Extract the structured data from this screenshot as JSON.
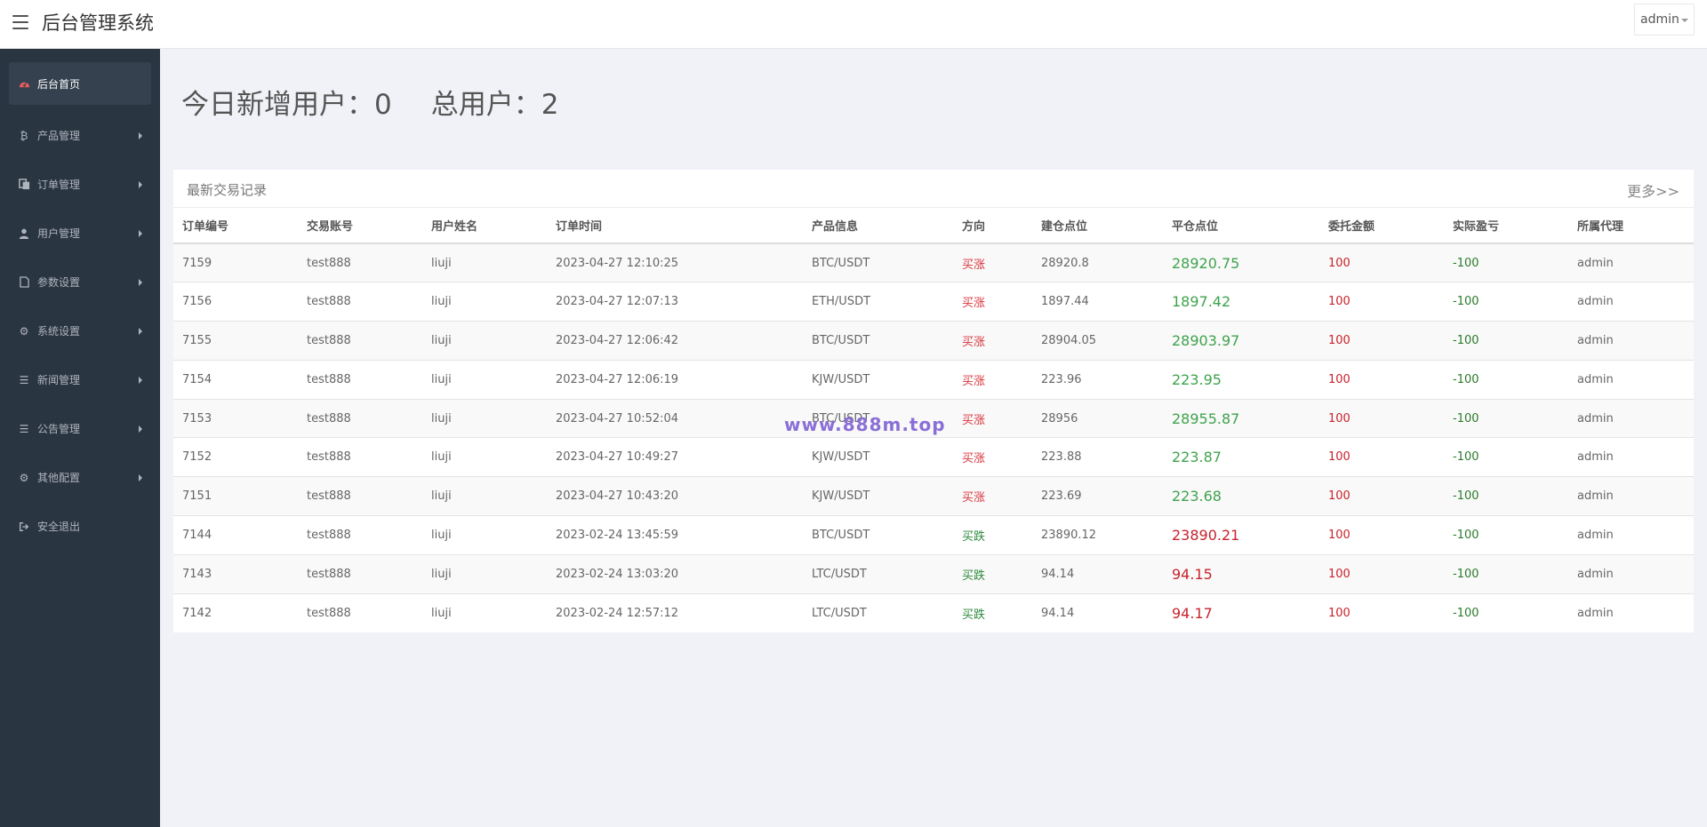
{
  "header": {
    "title": "后台管理系统",
    "user_menu": "admin"
  },
  "sidebar": {
    "items": [
      {
        "label": "后台首页",
        "icon": "dashboard-icon",
        "active": true
      },
      {
        "label": "产品管理",
        "icon": "bitcoin-icon"
      },
      {
        "label": "订单管理",
        "icon": "copy-icon"
      },
      {
        "label": "用户管理",
        "icon": "user-icon"
      },
      {
        "label": "参数设置",
        "icon": "file-icon"
      },
      {
        "label": "系统设置",
        "icon": "gears-icon"
      },
      {
        "label": "新闻管理",
        "icon": "list-icon"
      },
      {
        "label": "公告管理",
        "icon": "list-icon"
      },
      {
        "label": "其他配置",
        "icon": "gear-icon"
      },
      {
        "label": "安全退出",
        "icon": "sign-out-icon"
      }
    ]
  },
  "stats": {
    "new_users_label": "今日新增用户：0",
    "total_users_label": "总用户：2"
  },
  "panel": {
    "title": "最新交易记录",
    "more": "更多>>"
  },
  "table": {
    "columns": [
      "订单编号",
      "交易账号",
      "用户姓名",
      "订单时间",
      "产品信息",
      "方向",
      "建仓点位",
      "平仓点位",
      "委托金额",
      "实际盈亏",
      "所属代理"
    ],
    "rows": [
      [
        "7159",
        "test888",
        "liuji",
        "2023-04-27 12:10:25",
        "BTC/USDT",
        "买涨",
        "28920.8",
        "28920.75",
        "100",
        "-100",
        "admin"
      ],
      [
        "7156",
        "test888",
        "liuji",
        "2023-04-27 12:07:13",
        "ETH/USDT",
        "买涨",
        "1897.44",
        "1897.42",
        "100",
        "-100",
        "admin"
      ],
      [
        "7155",
        "test888",
        "liuji",
        "2023-04-27 12:06:42",
        "BTC/USDT",
        "买涨",
        "28904.05",
        "28903.97",
        "100",
        "-100",
        "admin"
      ],
      [
        "7154",
        "test888",
        "liuji",
        "2023-04-27 12:06:19",
        "KJW/USDT",
        "买涨",
        "223.96",
        "223.95",
        "100",
        "-100",
        "admin"
      ],
      [
        "7153",
        "test888",
        "liuji",
        "2023-04-27 10:52:04",
        "BTC/USDT",
        "买涨",
        "28956",
        "28955.87",
        "100",
        "-100",
        "admin"
      ],
      [
        "7152",
        "test888",
        "liuji",
        "2023-04-27 10:49:27",
        "KJW/USDT",
        "买涨",
        "223.88",
        "223.87",
        "100",
        "-100",
        "admin"
      ],
      [
        "7151",
        "test888",
        "liuji",
        "2023-04-27 10:43:20",
        "KJW/USDT",
        "买涨",
        "223.69",
        "223.68",
        "100",
        "-100",
        "admin"
      ],
      [
        "7144",
        "test888",
        "liuji",
        "2023-02-24 13:45:59",
        "BTC/USDT",
        "买跌",
        "23890.12",
        "23890.21",
        "100",
        "-100",
        "admin"
      ],
      [
        "7143",
        "test888",
        "liuji",
        "2023-02-24 13:03:20",
        "LTC/USDT",
        "买跌",
        "94.14",
        "94.15",
        "100",
        "-100",
        "admin"
      ],
      [
        "7142",
        "test888",
        "liuji",
        "2023-02-24 12:57:12",
        "LTC/USDT",
        "买跌",
        "94.14",
        "94.17",
        "100",
        "-100",
        "admin"
      ]
    ]
  },
  "watermark": "www.888m.top",
  "colors": {
    "sidebar_bg": "#2a3542",
    "up_red": "#d9363e",
    "down_green": "#2e8b3d",
    "close_green": "#3fa34d",
    "close_red": "#c8232c"
  }
}
